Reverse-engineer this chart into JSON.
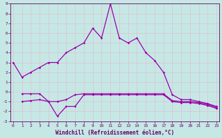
{
  "x": [
    0,
    1,
    2,
    3,
    4,
    5,
    6,
    7,
    8,
    9,
    10,
    11,
    12,
    13,
    14,
    15,
    16,
    17,
    18,
    19,
    20,
    21,
    22,
    23
  ],
  "line_main": [
    3.0,
    1.5,
    2.0,
    2.5,
    3.0,
    3.0,
    4.0,
    4.5,
    5.0,
    6.5,
    5.5,
    9.0,
    5.5,
    5.0,
    5.5,
    4.0,
    3.2,
    2.0,
    -0.3,
    -0.8,
    -0.8,
    -1.0,
    -1.2,
    -1.5
  ],
  "line_flat1": [
    null,
    -0.2,
    -0.2,
    -0.2,
    -1.0,
    -1.0,
    -0.8,
    -0.3,
    -0.2,
    -0.2,
    -0.2,
    -0.2,
    -0.2,
    -0.2,
    -0.2,
    -0.2,
    -0.2,
    -0.2,
    -0.9,
    -1.0,
    -1.0,
    -1.1,
    -1.3,
    -1.6
  ],
  "line_flat2": [
    null,
    -1.0,
    -0.9,
    -0.8,
    -1.0,
    -2.5,
    -1.5,
    -1.5,
    -0.3,
    -0.3,
    -0.3,
    -0.3,
    -0.3,
    -0.3,
    -0.3,
    -0.3,
    -0.3,
    -0.3,
    -1.0,
    -1.1,
    -1.1,
    -1.2,
    -1.4,
    -1.7
  ],
  "bg_color": "#c5e8e5",
  "grid_color": "#e8b4cc",
  "line_color": "#9900aa",
  "marker": "D",
  "marker_size": 1.8,
  "xlabel": "Windchill (Refroidissement éolien,°C)",
  "ylim": [
    -3,
    9
  ],
  "xlim": [
    -0.3,
    23.3
  ],
  "yticks": [
    -3,
    -2,
    -1,
    0,
    1,
    2,
    3,
    4,
    5,
    6,
    7,
    8,
    9
  ],
  "xticks": [
    0,
    1,
    2,
    3,
    4,
    5,
    6,
    7,
    8,
    9,
    10,
    11,
    12,
    13,
    14,
    15,
    16,
    17,
    18,
    19,
    20,
    21,
    22,
    23
  ],
  "axis_color": "#660066",
  "lw": 0.9,
  "tick_fontsize": 4.5,
  "xlabel_fontsize": 5.5
}
